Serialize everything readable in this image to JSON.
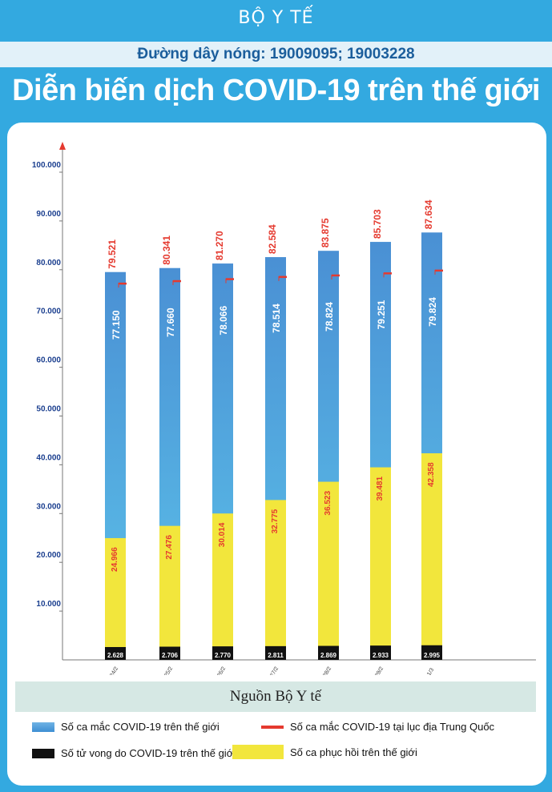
{
  "header": {
    "ministry": "BỘ Y TẾ",
    "hotline": "Đường dây nóng: 19009095; 19003228",
    "title": "Diễn biến  dịch COVID-19 trên thế giới"
  },
  "source": "Nguồn Bộ Y tế",
  "legend": {
    "cases": "Số ca mắc COVID-19 trên thế giới",
    "china": "Số ca mắc COVID-19 tại  lục địa Trung Quốc",
    "deaths": "Số tử vong do COVID-19 trên thế giới",
    "recovered": "Số ca phục hồi trên thế giới"
  },
  "colors": {
    "background": "#33a9e0",
    "cases_top": "#4a90d4",
    "cases_bottom": "#5cc3ea",
    "china_line": "#e53a2f",
    "recovered": "#f2e63c",
    "deaths": "#111111",
    "label_red": "#e53a2f",
    "axis_label": "#1b3f8f"
  },
  "chart_data": {
    "type": "bar",
    "categories": [
      "24/2",
      "25/2",
      "26/2",
      "27/2",
      "28/2",
      "29/2",
      "1/3"
    ],
    "y_tick_labels": [
      "10.000",
      "20.000",
      "30.000",
      "40.000",
      "50.000",
      "60.000",
      "70.000",
      "80.000",
      "90.000",
      "100.000"
    ],
    "ylim": [
      0,
      100000
    ],
    "series": [
      {
        "name": "Số ca mắc COVID-19 trên thế giới",
        "values": [
          79521,
          80341,
          81270,
          82584,
          83875,
          85703,
          87634
        ],
        "labels": [
          "79.521",
          "80.341",
          "81.270",
          "82.584",
          "83.875",
          "85.703",
          "87.634"
        ]
      },
      {
        "name": "Số ca mắc COVID-19 tại  lục địa Trung Quốc",
        "values": [
          77150,
          77660,
          78066,
          78514,
          78824,
          79251,
          79824
        ],
        "labels": [
          "77.150",
          "77.660",
          "78.066",
          "78.514",
          "78.824",
          "79.251",
          "79.824"
        ]
      },
      {
        "name": "Số ca phục hồi trên thế giới",
        "values": [
          24966,
          27476,
          30014,
          32775,
          36523,
          39481,
          42358
        ],
        "labels": [
          "24.966",
          "27.476",
          "30.014",
          "32.775",
          "36.523",
          "39.481",
          "42.358"
        ]
      },
      {
        "name": "Số tử vong do COVID-19 trên thế giới",
        "values": [
          2628,
          2706,
          2770,
          2811,
          2869,
          2933,
          2995
        ],
        "labels": [
          "2.628",
          "2.706",
          "2.770",
          "2.811",
          "2.869",
          "2.933",
          "2.995"
        ]
      }
    ]
  }
}
